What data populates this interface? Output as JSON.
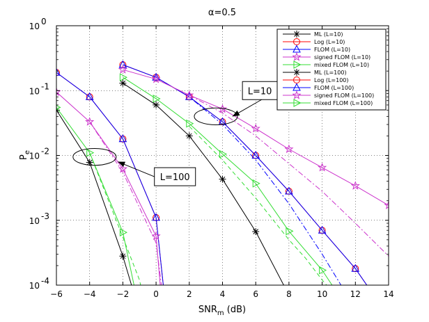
{
  "chart_data": {
    "type": "line",
    "title": "α=0.5",
    "xlabel_main": "SNR",
    "xlabel_sub": "m",
    "xlabel_unit": " (dB)",
    "ylabel_main": "P",
    "ylabel_sub": "e",
    "x_scale": "linear",
    "y_scale": "log",
    "xlim": [
      -6,
      14
    ],
    "ylim": [
      0.0001,
      1
    ],
    "grid": true,
    "legend_position": "top-right",
    "x_ticks": [
      -6,
      -4,
      -2,
      0,
      2,
      4,
      6,
      8,
      10,
      12,
      14
    ],
    "y_ticks": [
      {
        "value": 1,
        "base": "10",
        "exp": "0"
      },
      {
        "value": 0.1,
        "base": "10",
        "exp": "-1"
      },
      {
        "value": 0.01,
        "base": "10",
        "exp": "-2"
      },
      {
        "value": 0.001,
        "base": "10",
        "exp": "-3"
      },
      {
        "value": 0.0001,
        "base": "10",
        "exp": "-4"
      }
    ],
    "series": [
      {
        "name": "ML (L=10)",
        "color": "#000000",
        "dash": "solid",
        "marker": "asterisk",
        "x": [
          -2,
          0,
          2,
          4,
          6,
          8
        ],
        "y": [
          0.13,
          0.06,
          0.02,
          0.0043,
          0.00067,
          7e-05
        ]
      },
      {
        "name": "Log (L=10)",
        "color": "#ff0000",
        "dash": "solid",
        "marker": "circle",
        "x": [
          -2,
          0,
          2,
          4,
          6,
          8,
          10,
          12,
          13.5
        ],
        "y": [
          0.25,
          0.16,
          0.08,
          0.033,
          0.01,
          0.0028,
          0.0007,
          0.00018,
          5e-05
        ]
      },
      {
        "name": "FLOM (L=10)",
        "color": "#0000ff",
        "dash": "solid",
        "marker": "triangle-up",
        "x": [
          -2,
          0,
          2,
          4,
          6,
          8,
          10,
          12,
          13.5
        ],
        "y": [
          0.25,
          0.16,
          0.08,
          0.033,
          0.01,
          0.0028,
          0.0007,
          0.00018,
          5e-05
        ]
      },
      {
        "name": "signed FLOM (L=10)",
        "color": "#cc33cc",
        "dash": "solid",
        "marker": "star",
        "x": [
          -2,
          0,
          2,
          4,
          6,
          8,
          10,
          12,
          14
        ],
        "y": [
          0.21,
          0.15,
          0.085,
          0.052,
          0.026,
          0.0125,
          0.0065,
          0.0034,
          0.0017
        ]
      },
      {
        "name": "mixed FLOM (L=10)",
        "color": "#33dd33",
        "dash": "solid",
        "marker": "triangle-right",
        "x": [
          -2,
          0,
          2,
          4,
          6,
          8,
          10,
          11
        ],
        "y": [
          0.16,
          0.075,
          0.031,
          0.0105,
          0.0037,
          0.00068,
          0.00017,
          7e-05
        ]
      },
      {
        "name": "ML (L=100)",
        "color": "#000000",
        "dash": "solid",
        "marker": "asterisk",
        "x": [
          -6,
          -4,
          -2,
          -1.3
        ],
        "y": [
          0.05,
          0.0078,
          0.00028,
          7e-05
        ]
      },
      {
        "name": "Log (L=100)",
        "color": "#ff0000",
        "dash": "solid",
        "marker": "circle",
        "x": [
          -6,
          -4,
          -2,
          0,
          0.5
        ],
        "y": [
          0.19,
          0.08,
          0.018,
          0.0011,
          7e-05
        ]
      },
      {
        "name": "FLOM (L=100)",
        "color": "#0000ff",
        "dash": "solid",
        "marker": "triangle-up",
        "x": [
          -6,
          -4,
          -2,
          0,
          0.5
        ],
        "y": [
          0.19,
          0.08,
          0.018,
          0.0011,
          7e-05
        ]
      },
      {
        "name": "signed FLOM (L=100)",
        "color": "#cc33cc",
        "dash": "solid",
        "marker": "star",
        "x": [
          -6,
          -4,
          -2,
          0,
          0.3
        ],
        "y": [
          0.095,
          0.033,
          0.0062,
          0.00057,
          7e-05
        ]
      },
      {
        "name": "mixed FLOM (L=100)",
        "color": "#33dd33",
        "dash": "solid",
        "marker": "triangle-right",
        "x": [
          -6,
          -4,
          -2,
          -1.2
        ],
        "y": [
          0.055,
          0.011,
          0.00065,
          7e-05
        ]
      }
    ],
    "extra_curves": [
      {
        "color": "#0000ff",
        "dash": "dashdot",
        "x": [
          0,
          2,
          4,
          6,
          8,
          10,
          11.5
        ],
        "y": [
          0.16,
          0.08,
          0.03,
          0.0085,
          0.0018,
          0.0003,
          7e-05
        ]
      },
      {
        "color": "#cc33cc",
        "dash": "dashdot",
        "x": [
          2,
          4,
          6,
          8,
          10,
          12,
          14
        ],
        "y": [
          0.085,
          0.045,
          0.02,
          0.0075,
          0.0028,
          0.0009,
          0.00028
        ]
      },
      {
        "color": "#33dd33",
        "dash": "dashed",
        "x": [
          2,
          4,
          6,
          8,
          9,
          10,
          10.8
        ],
        "y": [
          0.028,
          0.0085,
          0.0022,
          0.0005,
          0.00026,
          0.00012,
          7e-05
        ]
      },
      {
        "color": "#cc33cc",
        "dash": "dashdot",
        "x": [
          -4,
          -2,
          0,
          0.4
        ],
        "y": [
          0.033,
          0.0055,
          0.00045,
          7e-05
        ]
      },
      {
        "color": "#33dd33",
        "dash": "dashed",
        "x": [
          -4,
          -2,
          -1,
          -0.8
        ],
        "y": [
          0.011,
          0.00055,
          0.00012,
          7e-05
        ]
      }
    ],
    "annotations": [
      {
        "text": "L=10",
        "box_at": [
          5.2,
          0.1
        ],
        "ellipse_center": [
          3.6,
          0.04
        ],
        "ellipse_rx_units": 1.3,
        "ellipse_ry_decades": 0.13,
        "arrow_to": [
          4.6,
          0.04
        ]
      },
      {
        "text": "L=100",
        "box_at": [
          -0.1,
          0.0047
        ],
        "ellipse_center": [
          -3.7,
          0.0095
        ],
        "ellipse_rx_units": 1.3,
        "ellipse_ry_decades": 0.13,
        "arrow_to": [
          -2.3,
          0.008
        ]
      }
    ]
  }
}
